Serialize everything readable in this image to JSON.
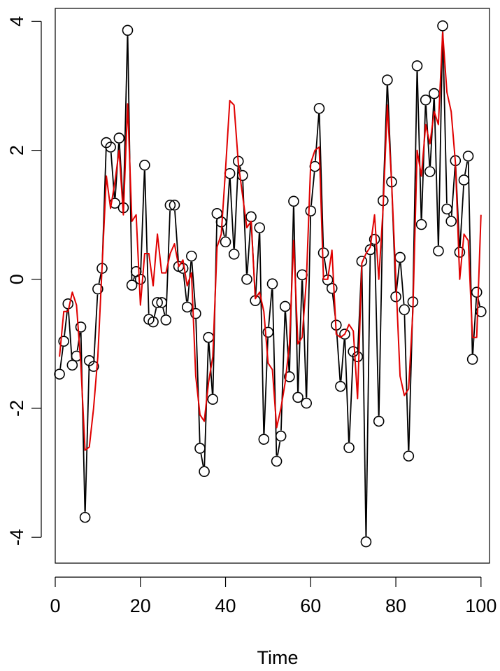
{
  "chart_data": {
    "type": "line",
    "title": "",
    "xlabel": "Time",
    "ylabel": "",
    "xlim": [
      0,
      102
    ],
    "ylim": [
      -4.4,
      4.2
    ],
    "xticks": [
      0,
      20,
      40,
      60,
      80,
      100
    ],
    "xtick_labels": [
      "0",
      "20",
      "40",
      "60",
      "80",
      "100"
    ],
    "yticks": [
      -4,
      -2,
      0,
      2,
      4
    ],
    "ytick_labels": [
      "-4",
      "-2",
      "0",
      "2",
      "4"
    ],
    "grid": false,
    "legend": "none",
    "x": [
      1,
      2,
      3,
      4,
      5,
      6,
      7,
      8,
      9,
      10,
      11,
      12,
      13,
      14,
      15,
      16,
      17,
      18,
      19,
      20,
      21,
      22,
      23,
      24,
      25,
      26,
      27,
      28,
      29,
      30,
      31,
      32,
      33,
      34,
      35,
      36,
      37,
      38,
      39,
      40,
      41,
      42,
      43,
      44,
      45,
      46,
      47,
      48,
      49,
      50,
      51,
      52,
      53,
      54,
      55,
      56,
      57,
      58,
      59,
      60,
      61,
      62,
      63,
      64,
      65,
      66,
      67,
      68,
      69,
      70,
      71,
      72,
      73,
      74,
      75,
      76,
      77,
      78,
      79,
      80,
      81,
      82,
      83,
      84,
      85,
      86,
      87,
      88,
      89,
      90,
      91,
      92,
      93,
      94,
      95,
      96,
      97,
      98,
      99,
      100
    ],
    "series": [
      {
        "color": "#000000",
        "style": "points-and-line",
        "values": [
          -1.47,
          -0.96,
          -0.38,
          -1.33,
          -1.19,
          -0.74,
          -3.69,
          -1.26,
          -1.35,
          -0.15,
          0.17,
          2.12,
          2.05,
          1.18,
          2.19,
          1.11,
          3.86,
          -0.09,
          0.12,
          0.0,
          1.77,
          -0.62,
          -0.66,
          -0.36,
          -0.36,
          -0.63,
          1.15,
          1.15,
          0.2,
          0.17,
          -0.43,
          0.36,
          -0.53,
          -2.62,
          -2.98,
          -0.9,
          -1.86,
          1.02,
          0.89,
          0.58,
          1.64,
          0.39,
          1.83,
          1.61,
          0.0,
          0.97,
          -0.33,
          0.8,
          -2.48,
          -0.82,
          -0.07,
          -2.82,
          -2.43,
          -0.42,
          -1.51,
          1.21,
          -1.83,
          0.07,
          -1.92,
          1.06,
          1.75,
          2.65,
          0.41,
          -0.01,
          -0.14,
          -0.71,
          -1.66,
          -0.85,
          -2.61,
          -1.12,
          -1.2,
          0.28,
          -4.07,
          0.46,
          0.62,
          -2.2,
          1.22,
          3.09,
          1.51,
          -0.27,
          0.34,
          -0.47,
          -2.74,
          -0.35,
          3.31,
          0.85,
          2.78,
          1.67,
          2.88,
          0.44,
          3.93,
          1.09,
          0.9,
          1.84,
          0.42,
          1.54,
          1.91,
          -1.24,
          -0.2,
          -0.5
        ]
      },
      {
        "color": "#e00000",
        "style": "line",
        "values": [
          -1.2,
          -0.5,
          -0.5,
          -0.2,
          -0.4,
          -1.3,
          -2.65,
          -2.6,
          -2.0,
          -1.2,
          0.2,
          1.6,
          1.1,
          1.5,
          2.0,
          1.0,
          2.72,
          0.9,
          1.0,
          -0.4,
          0.4,
          0.4,
          -0.1,
          0.7,
          0.1,
          0.1,
          0.4,
          0.55,
          0.2,
          0.3,
          -0.1,
          0.1,
          -1.5,
          -2.1,
          -2.2,
          -1.6,
          -1.2,
          0.5,
          0.7,
          1.7,
          2.77,
          2.7,
          1.8,
          1.3,
          0.8,
          0.9,
          -0.3,
          -0.2,
          -0.5,
          -1.3,
          -1.4,
          -2.3,
          -2.0,
          -1.6,
          -1.0,
          0.6,
          -1.0,
          -0.9,
          0.0,
          1.8,
          2.0,
          2.05,
          0.0,
          0.0,
          0.45,
          -0.85,
          -0.9,
          -0.85,
          -0.7,
          -0.8,
          -1.85,
          0.25,
          0.4,
          0.5,
          1.0,
          0.0,
          1.1,
          2.7,
          1.5,
          0.0,
          -1.5,
          -1.8,
          -1.7,
          -0.5,
          2.0,
          1.6,
          2.4,
          2.1,
          2.6,
          2.4,
          3.83,
          2.9,
          2.6,
          1.8,
          0.0,
          0.7,
          0.6,
          -0.9,
          -0.9,
          1.0
        ]
      }
    ]
  }
}
